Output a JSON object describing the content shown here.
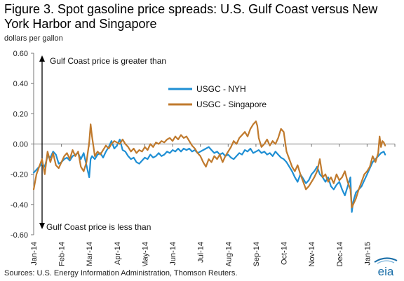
{
  "title": "Figure 3. Spot gasoline price spreads: U.S. Gulf Coast versus New York Harbor and Singapore",
  "units": "dollars per gallon",
  "source": "Sources: U.S. Energy Information Administration, Thomson Reuters.",
  "logo_text": "eia",
  "colors": {
    "nyh": "#1f8fd4",
    "singapore": "#c07a2d",
    "axis": "#777777",
    "arrow": "#000000",
    "logo": "#1a6ea8"
  },
  "chart_data": {
    "type": "line",
    "ylim": [
      -0.6,
      0.6
    ],
    "yticks": [
      "0.60",
      "0.40",
      "0.20",
      "0.00",
      "-0.20",
      "-0.40",
      "-0.60"
    ],
    "xticks": [
      "Jan-14",
      "Feb-14",
      "Mar-14",
      "Apr-14",
      "May-14",
      "Jun-14",
      "Jul-14",
      "Aug-14",
      "Sep-14",
      "Oct-14",
      "Nov-14",
      "Dec-14",
      "Jan-15"
    ],
    "grid": false,
    "legend": "upper-center",
    "annotations": {
      "up": "Gulf Coast price is greater than",
      "down": "Gulf Coast price is less than"
    },
    "series": [
      {
        "name": "USGC - NYH",
        "values": [
          [
            0.0,
            -0.19
          ],
          [
            0.1,
            -0.17
          ],
          [
            0.2,
            -0.15
          ],
          [
            0.3,
            -0.13
          ],
          [
            0.4,
            -0.15
          ],
          [
            0.5,
            -0.08
          ],
          [
            0.6,
            -0.09
          ],
          [
            0.7,
            -0.05
          ],
          [
            0.8,
            -0.07
          ],
          [
            0.9,
            -0.13
          ],
          [
            1.0,
            -0.12
          ],
          [
            1.1,
            -0.1
          ],
          [
            1.2,
            -0.09
          ],
          [
            1.3,
            -0.11
          ],
          [
            1.4,
            -0.08
          ],
          [
            1.5,
            -0.07
          ],
          [
            1.6,
            -0.06
          ],
          [
            1.7,
            -0.1
          ],
          [
            1.8,
            -0.06
          ],
          [
            1.9,
            -0.14
          ],
          [
            2.0,
            -0.22
          ],
          [
            2.05,
            -0.1
          ],
          [
            2.1,
            -0.08
          ],
          [
            2.2,
            -0.1
          ],
          [
            2.3,
            -0.07
          ],
          [
            2.4,
            -0.06
          ],
          [
            2.5,
            -0.09
          ],
          [
            2.6,
            -0.05
          ],
          [
            2.7,
            -0.02
          ],
          [
            2.8,
            0.02
          ],
          [
            2.9,
            -0.03
          ],
          [
            3.0,
            -0.01
          ],
          [
            3.1,
            0.03
          ],
          [
            3.2,
            -0.04
          ],
          [
            3.3,
            -0.05
          ],
          [
            3.4,
            -0.08
          ],
          [
            3.5,
            -0.1
          ],
          [
            3.6,
            -0.09
          ],
          [
            3.7,
            -0.12
          ],
          [
            3.8,
            -0.13
          ],
          [
            3.9,
            -0.11
          ],
          [
            4.0,
            -0.09
          ],
          [
            4.1,
            -0.1
          ],
          [
            4.2,
            -0.07
          ],
          [
            4.3,
            -0.09
          ],
          [
            4.4,
            -0.08
          ],
          [
            4.5,
            -0.06
          ],
          [
            4.6,
            -0.08
          ],
          [
            4.7,
            -0.07
          ],
          [
            4.8,
            -0.05
          ],
          [
            4.9,
            -0.06
          ],
          [
            5.0,
            -0.04
          ],
          [
            5.1,
            -0.05
          ],
          [
            5.2,
            -0.03
          ],
          [
            5.3,
            -0.05
          ],
          [
            5.4,
            -0.03
          ],
          [
            5.5,
            -0.04
          ],
          [
            5.6,
            -0.03
          ],
          [
            5.7,
            -0.05
          ],
          [
            5.8,
            -0.04
          ],
          [
            5.9,
            -0.06
          ],
          [
            6.0,
            -0.05
          ],
          [
            6.1,
            -0.04
          ],
          [
            6.2,
            -0.03
          ],
          [
            6.3,
            -0.02
          ],
          [
            6.4,
            -0.04
          ],
          [
            6.5,
            -0.06
          ],
          [
            6.6,
            -0.05
          ],
          [
            6.7,
            -0.07
          ],
          [
            6.8,
            -0.06
          ],
          [
            6.9,
            -0.08
          ],
          [
            7.0,
            -0.07
          ],
          [
            7.1,
            -0.09
          ],
          [
            7.2,
            -0.1
          ],
          [
            7.3,
            -0.08
          ],
          [
            7.4,
            -0.06
          ],
          [
            7.5,
            -0.07
          ],
          [
            7.6,
            -0.04
          ],
          [
            7.7,
            -0.05
          ],
          [
            7.8,
            -0.03
          ],
          [
            7.9,
            -0.06
          ],
          [
            8.0,
            -0.05
          ],
          [
            8.1,
            -0.04
          ],
          [
            8.2,
            -0.06
          ],
          [
            8.3,
            -0.05
          ],
          [
            8.4,
            -0.07
          ],
          [
            8.5,
            -0.06
          ],
          [
            8.6,
            -0.08
          ],
          [
            8.7,
            -0.05
          ],
          [
            8.8,
            -0.07
          ],
          [
            8.9,
            -0.09
          ],
          [
            9.0,
            -0.1
          ],
          [
            9.1,
            -0.12
          ],
          [
            9.2,
            -0.15
          ],
          [
            9.3,
            -0.18
          ],
          [
            9.4,
            -0.22
          ],
          [
            9.5,
            -0.25
          ],
          [
            9.6,
            -0.2
          ],
          [
            9.7,
            -0.23
          ],
          [
            9.8,
            -0.26
          ],
          [
            9.9,
            -0.24
          ],
          [
            10.0,
            -0.2
          ],
          [
            10.1,
            -0.18
          ],
          [
            10.2,
            -0.15
          ],
          [
            10.3,
            -0.2
          ],
          [
            10.4,
            -0.22
          ],
          [
            10.5,
            -0.25
          ],
          [
            10.6,
            -0.22
          ],
          [
            10.7,
            -0.28
          ],
          [
            10.8,
            -0.3
          ],
          [
            10.9,
            -0.27
          ],
          [
            11.0,
            -0.25
          ],
          [
            11.1,
            -0.3
          ],
          [
            11.2,
            -0.34
          ],
          [
            11.3,
            -0.28
          ],
          [
            11.4,
            -0.22
          ],
          [
            11.45,
            -0.45
          ],
          [
            11.5,
            -0.38
          ],
          [
            11.6,
            -0.32
          ],
          [
            11.7,
            -0.3
          ],
          [
            11.8,
            -0.28
          ],
          [
            11.9,
            -0.24
          ],
          [
            12.0,
            -0.2
          ],
          [
            12.1,
            -0.16
          ],
          [
            12.2,
            -0.12
          ],
          [
            12.3,
            -0.1
          ],
          [
            12.4,
            -0.08
          ],
          [
            12.5,
            -0.06
          ],
          [
            12.6,
            -0.05
          ],
          [
            12.65,
            -0.07
          ]
        ]
      },
      {
        "name": "USGC - Singapore",
        "values": [
          [
            0.0,
            -0.3
          ],
          [
            0.05,
            -0.25
          ],
          [
            0.1,
            -0.2
          ],
          [
            0.2,
            -0.15
          ],
          [
            0.3,
            -0.1
          ],
          [
            0.4,
            -0.2
          ],
          [
            0.5,
            -0.05
          ],
          [
            0.6,
            -0.12
          ],
          [
            0.7,
            -0.06
          ],
          [
            0.8,
            -0.14
          ],
          [
            0.9,
            -0.16
          ],
          [
            1.0,
            -0.12
          ],
          [
            1.1,
            -0.08
          ],
          [
            1.2,
            -0.06
          ],
          [
            1.3,
            -0.1
          ],
          [
            1.4,
            -0.04
          ],
          [
            1.5,
            -0.08
          ],
          [
            1.6,
            -0.05
          ],
          [
            1.7,
            -0.15
          ],
          [
            1.8,
            -0.18
          ],
          [
            1.9,
            -0.12
          ],
          [
            2.0,
            0.01
          ],
          [
            2.05,
            0.13
          ],
          [
            2.1,
            0.05
          ],
          [
            2.2,
            -0.08
          ],
          [
            2.3,
            -0.05
          ],
          [
            2.4,
            -0.07
          ],
          [
            2.5,
            -0.04
          ],
          [
            2.6,
            -0.01
          ],
          [
            2.7,
            -0.03
          ],
          [
            2.8,
            0.0
          ],
          [
            2.9,
            0.02
          ],
          [
            3.0,
            0.01
          ],
          [
            3.1,
            0.0
          ],
          [
            3.2,
            0.03
          ],
          [
            3.3,
            0.0
          ],
          [
            3.4,
            -0.02
          ],
          [
            3.5,
            -0.05
          ],
          [
            3.6,
            -0.03
          ],
          [
            3.7,
            -0.06
          ],
          [
            3.8,
            -0.04
          ],
          [
            3.9,
            -0.05
          ],
          [
            4.0,
            -0.02
          ],
          [
            4.1,
            -0.04
          ],
          [
            4.2,
            0.0
          ],
          [
            4.3,
            -0.02
          ],
          [
            4.4,
            0.01
          ],
          [
            4.5,
            0.0
          ],
          [
            4.6,
            0.02
          ],
          [
            4.7,
            0.01
          ],
          [
            4.8,
            0.03
          ],
          [
            4.9,
            0.04
          ],
          [
            5.0,
            0.02
          ],
          [
            5.1,
            0.05
          ],
          [
            5.2,
            0.03
          ],
          [
            5.3,
            0.06
          ],
          [
            5.4,
            0.04
          ],
          [
            5.5,
            0.05
          ],
          [
            5.6,
            0.02
          ],
          [
            5.7,
            -0.01
          ],
          [
            5.8,
            -0.03
          ],
          [
            5.9,
            -0.06
          ],
          [
            6.0,
            -0.08
          ],
          [
            6.1,
            -0.12
          ],
          [
            6.2,
            -0.15
          ],
          [
            6.3,
            -0.1
          ],
          [
            6.4,
            -0.12
          ],
          [
            6.5,
            -0.08
          ],
          [
            6.6,
            -0.1
          ],
          [
            6.7,
            -0.07
          ],
          [
            6.8,
            -0.12
          ],
          [
            6.9,
            -0.08
          ],
          [
            7.0,
            -0.05
          ],
          [
            7.1,
            -0.02
          ],
          [
            7.2,
            0.02
          ],
          [
            7.3,
            0.0
          ],
          [
            7.4,
            0.04
          ],
          [
            7.5,
            0.06
          ],
          [
            7.6,
            0.08
          ],
          [
            7.7,
            0.05
          ],
          [
            7.8,
            0.1
          ],
          [
            7.9,
            0.13
          ],
          [
            8.0,
            0.15
          ],
          [
            8.05,
            0.12
          ],
          [
            8.1,
            0.04
          ],
          [
            8.2,
            -0.02
          ],
          [
            8.3,
            0.0
          ],
          [
            8.4,
            0.03
          ],
          [
            8.5,
            -0.01
          ],
          [
            8.6,
            0.02
          ],
          [
            8.7,
            0.0
          ],
          [
            8.8,
            0.04
          ],
          [
            8.9,
            0.1
          ],
          [
            9.0,
            0.08
          ],
          [
            9.1,
            -0.05
          ],
          [
            9.2,
            -0.1
          ],
          [
            9.3,
            -0.15
          ],
          [
            9.4,
            -0.18
          ],
          [
            9.5,
            -0.14
          ],
          [
            9.6,
            -0.2
          ],
          [
            9.7,
            -0.25
          ],
          [
            9.8,
            -0.3
          ],
          [
            9.9,
            -0.28
          ],
          [
            10.0,
            -0.25
          ],
          [
            10.1,
            -0.22
          ],
          [
            10.2,
            -0.18
          ],
          [
            10.3,
            -0.1
          ],
          [
            10.4,
            -0.22
          ],
          [
            10.5,
            -0.2
          ],
          [
            10.6,
            -0.25
          ],
          [
            10.7,
            -0.22
          ],
          [
            10.8,
            -0.26
          ],
          [
            10.9,
            -0.2
          ],
          [
            11.0,
            -0.24
          ],
          [
            11.1,
            -0.22
          ],
          [
            11.2,
            -0.18
          ],
          [
            11.3,
            -0.25
          ],
          [
            11.4,
            -0.3
          ],
          [
            11.45,
            -0.42
          ],
          [
            11.5,
            -0.4
          ],
          [
            11.6,
            -0.36
          ],
          [
            11.7,
            -0.3
          ],
          [
            11.8,
            -0.25
          ],
          [
            11.9,
            -0.2
          ],
          [
            12.0,
            -0.18
          ],
          [
            12.1,
            -0.15
          ],
          [
            12.2,
            -0.08
          ],
          [
            12.3,
            -0.12
          ],
          [
            12.4,
            -0.06
          ],
          [
            12.45,
            0.05
          ],
          [
            12.5,
            -0.02
          ],
          [
            12.55,
            0.02
          ],
          [
            12.6,
            0.01
          ],
          [
            12.65,
            -0.01
          ]
        ]
      }
    ]
  }
}
